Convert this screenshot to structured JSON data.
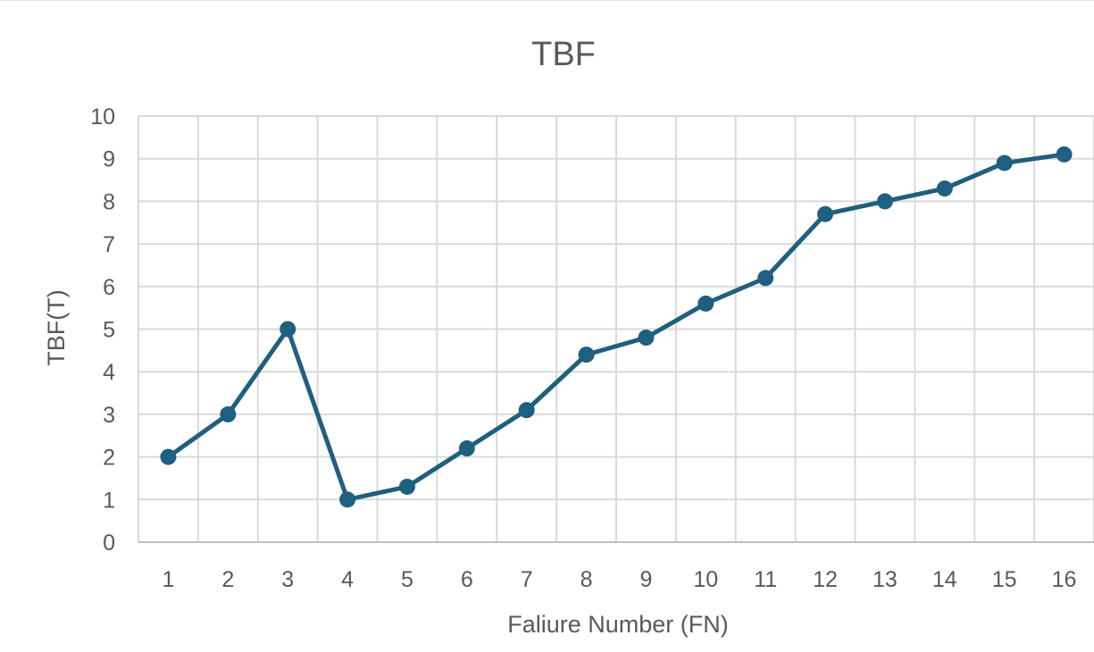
{
  "chart_data": {
    "type": "line",
    "title": "TBF",
    "xlabel": "Faliure Number (FN)",
    "ylabel": "TBF(T)",
    "categories": [
      "1",
      "2",
      "3",
      "4",
      "5",
      "6",
      "7",
      "8",
      "9",
      "10",
      "11",
      "12",
      "13",
      "14",
      "15",
      "16"
    ],
    "series": [
      {
        "values": [
          2,
          3,
          5,
          1,
          1.3,
          2.2,
          3.1,
          4.4,
          4.8,
          5.6,
          6.2,
          7.7,
          8,
          8.3,
          8.9,
          9.1
        ]
      }
    ],
    "ylim": [
      0,
      10
    ],
    "yticks": [
      0,
      1,
      2,
      3,
      4,
      5,
      6,
      7,
      8,
      9,
      10
    ],
    "grid": true,
    "legend": "none",
    "colors": {
      "series": "#1f5f80",
      "grid": "#d9d9d9",
      "text": "#595959"
    }
  }
}
